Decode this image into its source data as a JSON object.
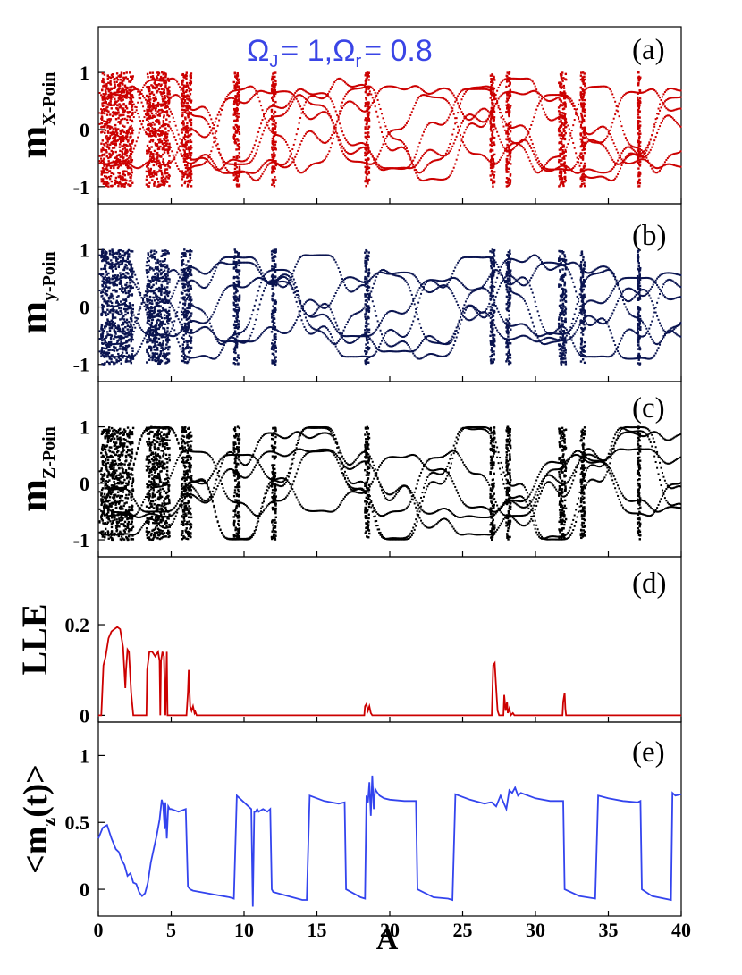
{
  "chart_data": [
    {
      "type": "scatter",
      "panel": "(a)",
      "title": "Ω_J = 1, Ω_r = 0.8",
      "title_parts": {
        "omega": "Ω",
        "sub1": "J",
        "eq1": "= 1,",
        "sub2": "r",
        "eq2": "= 0.8"
      },
      "ylabel_main": "m",
      "ylabel_sub": "X-Poin",
      "yticks": [
        1,
        0,
        -1
      ],
      "ytick_labels": [
        "1",
        "0",
        "-1"
      ],
      "ylim": [
        -1.3,
        1.8
      ],
      "xlim": [
        0,
        40
      ],
      "color": "#cc0000",
      "chaotic_bands": [
        [
          0.2,
          2.4
        ],
        [
          3.3,
          4.9
        ],
        [
          5.7,
          6.4
        ],
        [
          9.3,
          9.7
        ],
        [
          11.9,
          12.2
        ],
        [
          18.3,
          18.6
        ],
        [
          26.9,
          27.2
        ],
        [
          28.0,
          28.3
        ],
        [
          31.6,
          32.1
        ],
        [
          33.1,
          33.4
        ],
        [
          37.0,
          37.2
        ]
      ]
    },
    {
      "type": "scatter",
      "panel": "(b)",
      "ylabel_main": "m",
      "ylabel_sub": "y-Poin",
      "yticks": [
        1,
        0,
        -1
      ],
      "ytick_labels": [
        "1",
        "0",
        "-1"
      ],
      "ylim": [
        -1.3,
        1.8
      ],
      "xlim": [
        0,
        40
      ],
      "color": "#0a1450",
      "chaotic_bands": [
        [
          0.2,
          2.4
        ],
        [
          3.3,
          4.9
        ],
        [
          5.7,
          6.4
        ],
        [
          9.3,
          9.7
        ],
        [
          11.9,
          12.2
        ],
        [
          18.3,
          18.6
        ],
        [
          26.9,
          27.2
        ],
        [
          28.0,
          28.3
        ],
        [
          31.6,
          32.1
        ],
        [
          33.1,
          33.4
        ],
        [
          37.0,
          37.2
        ]
      ]
    },
    {
      "type": "scatter",
      "panel": "(c)",
      "ylabel_main": "m",
      "ylabel_sub": "Z-Poin",
      "yticks": [
        1,
        0,
        -1
      ],
      "ytick_labels": [
        "1",
        "0",
        "-1"
      ],
      "ylim": [
        -1.3,
        1.8
      ],
      "xlim": [
        0,
        40
      ],
      "color": "#000000",
      "chaotic_bands": [
        [
          0.2,
          2.4
        ],
        [
          3.3,
          4.9
        ],
        [
          5.7,
          6.4
        ],
        [
          9.3,
          9.7
        ],
        [
          11.9,
          12.2
        ],
        [
          18.3,
          18.6
        ],
        [
          26.9,
          27.2
        ],
        [
          28.0,
          28.3
        ],
        [
          31.6,
          32.1
        ],
        [
          33.1,
          33.4
        ],
        [
          37.0,
          37.2
        ]
      ]
    },
    {
      "type": "line",
      "panel": "(d)",
      "ylabel_main": "LLE",
      "yticks": [
        0.2,
        0
      ],
      "ytick_labels": [
        "0.2",
        "0"
      ],
      "ylim": [
        -0.015,
        0.35
      ],
      "xlim": [
        0,
        40
      ],
      "color": "#cc0000",
      "x": [
        0,
        0.2,
        0.35,
        0.5,
        0.7,
        0.9,
        1.1,
        1.3,
        1.5,
        1.7,
        1.85,
        1.9,
        2.0,
        2.1,
        2.25,
        2.4,
        2.45,
        3.3,
        3.35,
        3.5,
        3.7,
        3.9,
        4.1,
        4.2,
        4.25,
        4.3,
        4.4,
        4.5,
        4.6,
        4.7,
        4.75,
        6.05,
        6.15,
        6.2,
        6.3,
        6.4,
        6.5,
        6.6,
        6.65,
        6.75,
        6.85,
        18.25,
        18.3,
        18.4,
        18.5,
        18.6,
        18.7,
        18.8,
        27.0,
        27.1,
        27.2,
        27.3,
        27.4,
        27.5,
        27.8,
        27.85,
        27.95,
        28.05,
        28.1,
        28.2,
        28.3,
        28.45,
        28.55,
        31.85,
        31.9,
        32.0,
        32.05,
        32.1,
        40
      ],
      "y": [
        0,
        0,
        0.11,
        0.13,
        0.17,
        0.185,
        0.19,
        0.195,
        0.19,
        0.15,
        0.06,
        0.1,
        0.145,
        0.14,
        0.05,
        0,
        0,
        0,
        0.1,
        0.14,
        0.14,
        0.13,
        0.14,
        0.12,
        0,
        0.12,
        0.14,
        0.13,
        0,
        0.14,
        0,
        0,
        0.05,
        0.1,
        0.02,
        0.01,
        0.02,
        0.005,
        0.008,
        0,
        0,
        0,
        0.02,
        0.025,
        0.01,
        0.02,
        0.005,
        0,
        0,
        0.11,
        0.115,
        0.06,
        0.01,
        0,
        0,
        0.045,
        0.01,
        0.03,
        0.005,
        0.015,
        0,
        0.005,
        0,
        0,
        0.03,
        0.05,
        0.015,
        0,
        0
      ],
      "note": ""
    },
    {
      "type": "line",
      "panel": "(e)",
      "ylabel_main": "<m",
      "ylabel_sub": "z",
      "ylabel_tail": "(t)>",
      "yticks": [
        1,
        0.5,
        0
      ],
      "ytick_labels": [
        "1",
        "0.5",
        "0"
      ],
      "ylim": [
        -0.2,
        1.25
      ],
      "xlim": [
        0,
        40
      ],
      "xticks": [
        0,
        5,
        10,
        15,
        20,
        25,
        30,
        35,
        40
      ],
      "xtick_labels": [
        "0",
        "5",
        "10",
        "15",
        "20",
        "25",
        "30",
        "35",
        "40"
      ],
      "xlabel": "A",
      "color": "#3344ee",
      "x": [
        0,
        0.3,
        0.6,
        0.9,
        1.2,
        1.4,
        1.6,
        1.8,
        2.0,
        2.2,
        2.4,
        2.6,
        2.8,
        3.0,
        3.2,
        3.4,
        3.6,
        3.8,
        4.0,
        4.2,
        4.35,
        4.45,
        4.55,
        4.6,
        4.7,
        4.8,
        4.9,
        5.0,
        5.5,
        6.0,
        6.15,
        6.3,
        6.5,
        7.0,
        8.0,
        9.0,
        9.3,
        9.5,
        10.0,
        10.5,
        10.6,
        10.7,
        10.8,
        10.9,
        11.0,
        11.3,
        11.6,
        11.8,
        11.9,
        12.0,
        13.0,
        14.0,
        14.3,
        14.5,
        15.5,
        16.5,
        16.9,
        17.0,
        18.0,
        18.3,
        18.4,
        18.5,
        18.6,
        18.7,
        18.8,
        18.9,
        19.0,
        19.1,
        19.3,
        19.6,
        20.0,
        21.0,
        21.8,
        21.9,
        23.0,
        24.0,
        24.3,
        24.5,
        25.5,
        26.5,
        26.9,
        27.0,
        27.3,
        27.6,
        28.0,
        28.2,
        28.4,
        28.6,
        28.8,
        29.0,
        30.0,
        31.0,
        31.9,
        32.0,
        33.0,
        34.1,
        34.3,
        35.0,
        36.0,
        37.0,
        37.2,
        37.3,
        38.0,
        39.3,
        39.4,
        39.6,
        40.0
      ],
      "y": [
        0.38,
        0.46,
        0.48,
        0.38,
        0.3,
        0.28,
        0.22,
        0.18,
        0.1,
        0.12,
        0.05,
        0.04,
        -0.02,
        -0.05,
        -0.03,
        0.05,
        0.2,
        0.3,
        0.4,
        0.52,
        0.67,
        0.63,
        0.45,
        0.65,
        0.38,
        0.62,
        0.6,
        0.6,
        0.58,
        0.6,
        0.02,
        0.0,
        -0.01,
        -0.02,
        -0.04,
        -0.06,
        -0.07,
        0.7,
        0.65,
        0.6,
        -0.13,
        0.58,
        0.58,
        0.6,
        0.58,
        0.6,
        0.58,
        0.6,
        0.0,
        -0.02,
        -0.05,
        -0.08,
        -0.08,
        0.7,
        0.66,
        0.64,
        0.65,
        0.0,
        -0.06,
        -0.07,
        0.7,
        0.65,
        0.8,
        0.55,
        0.85,
        0.6,
        0.75,
        0.73,
        0.7,
        0.68,
        0.67,
        0.66,
        0.66,
        0.0,
        -0.06,
        -0.07,
        -0.08,
        0.71,
        0.67,
        0.64,
        0.65,
        0.65,
        0.62,
        0.7,
        0.6,
        0.74,
        0.72,
        0.76,
        0.7,
        0.72,
        0.68,
        0.66,
        0.66,
        0.0,
        -0.05,
        -0.07,
        0.7,
        0.68,
        0.66,
        0.65,
        0.66,
        0.0,
        -0.05,
        -0.08,
        0.72,
        0.7,
        0.71
      ]
    }
  ]
}
